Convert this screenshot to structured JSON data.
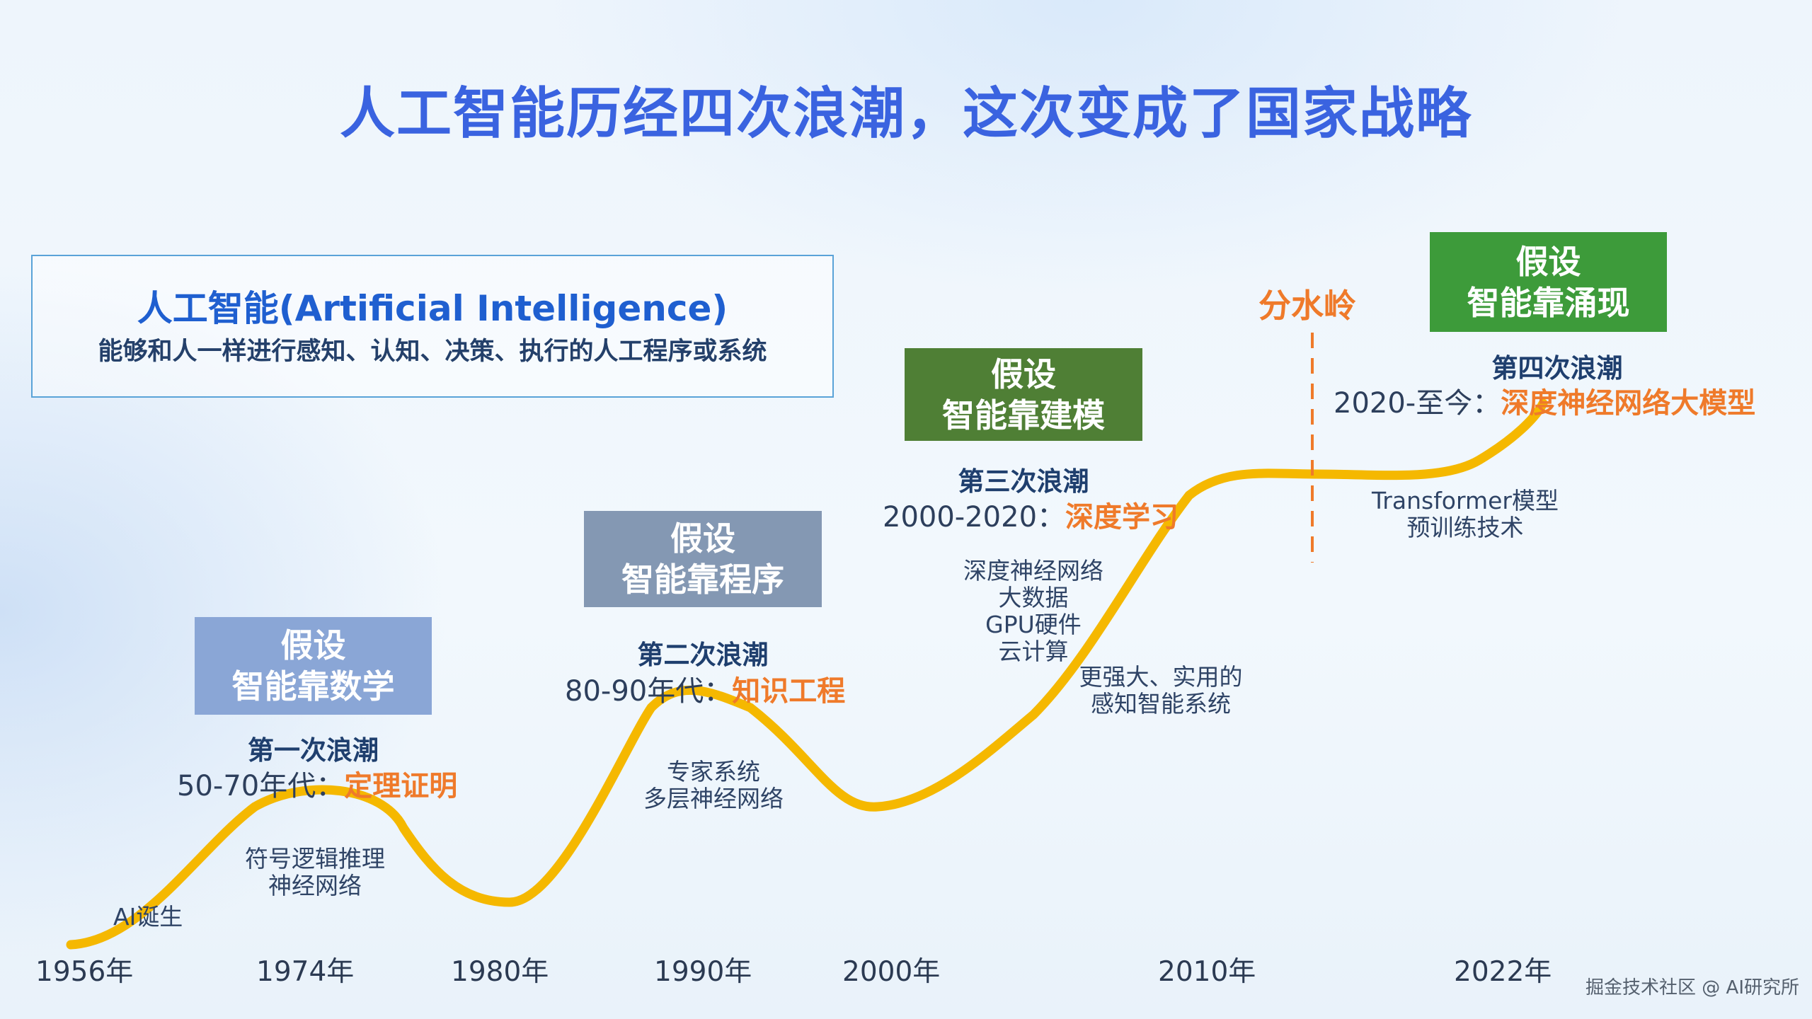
{
  "title": "人工智能历经四次浪潮，这次变成了国家战略",
  "definition": {
    "title": "人工智能(Artificial Intelligence)",
    "description": "能够和人一样进行感知、认知、决策、执行的人工程序或系统"
  },
  "waves": [
    {
      "hypothesis_line1": "假设",
      "hypothesis_line2": "智能靠数学",
      "box_color": "#8aa6d6",
      "name": "第一次浪潮",
      "period": "50-70年代：",
      "highlight": "定理证明",
      "notes": [
        "符号逻辑推理",
        "神经网络"
      ]
    },
    {
      "hypothesis_line1": "假设",
      "hypothesis_line2": "智能靠程序",
      "box_color": "#8498b3",
      "name": "第二次浪潮",
      "period": "80-90年代：",
      "highlight": "知识工程",
      "notes": [
        "专家系统",
        "多层神经网络"
      ]
    },
    {
      "hypothesis_line1": "假设",
      "hypothesis_line2": "智能靠建模",
      "box_color": "#4f7f35",
      "name": "第三次浪潮",
      "period": "2000-2020：",
      "highlight": "深度学习",
      "notes": [
        "深度神经网络",
        "大数据",
        "GPU硬件",
        "云计算"
      ],
      "notes_secondary": [
        "更强大、实用的",
        "感知智能系统"
      ]
    },
    {
      "hypothesis_line1": "假设",
      "hypothesis_line2": "智能靠涌现",
      "box_color": "#3d9b3a",
      "name": "第四次浪潮",
      "period": "2020-至今：",
      "highlight": "深度神经网络大模型",
      "notes": [
        "Transformer模型",
        "预训练技术"
      ]
    }
  ],
  "ai_birth": "AI诞生",
  "watershed": "分水岭",
  "years": [
    "1956年",
    "1974年",
    "1980年",
    "1990年",
    "2000年",
    "2010年",
    "2022年"
  ],
  "colors": {
    "curve": "#f5b800",
    "accent": "#ef7a2a",
    "title": "#3a63e0",
    "divider": "#ef7a2a"
  },
  "watermark": "掘金技术社区 @ AI研究所"
}
